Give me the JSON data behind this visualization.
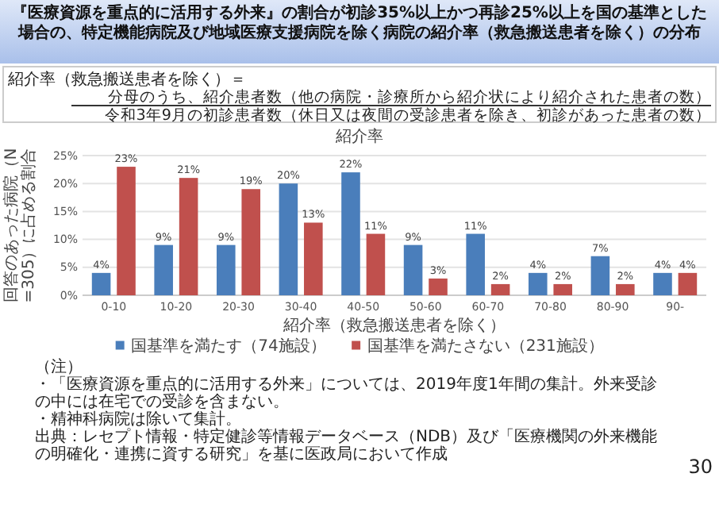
{
  "chart_data": {
    "type": "bar",
    "title": "『医療資源を重点的に活用する外来』の割合が初診35%以上かつ再診25%以上を国の基準とした場合の、特定機能病院及び地域医療支援病院を除く病院の紹介率（救急搬送患者を除く）の分布",
    "subtitle": "紹介率",
    "xlabel": "紹介率（救急搬送患者を除く）",
    "ylabel": "回答のあった病院（N=305）に占める割合",
    "categories": [
      "0-10",
      "10-20",
      "20-30",
      "30-40",
      "40-50",
      "50-60",
      "60-70",
      "70-80",
      "80-90",
      "90-"
    ],
    "series": [
      {
        "name": "国基準を満たす（74施設）",
        "color": "#4a7ebb",
        "values": [
          4,
          9,
          9,
          20,
          22,
          9,
          11,
          4,
          7,
          4
        ],
        "value_labels": [
          "4%",
          "9%",
          "9%",
          "20%",
          "22%",
          "9%",
          "11%",
          "4%",
          "7%",
          "4%"
        ]
      },
      {
        "name": "国基準を満たさない（231施設）",
        "color": "#c0504d",
        "values": [
          23,
          21,
          19,
          13,
          11,
          3,
          2,
          2,
          2,
          4
        ],
        "value_labels": [
          "23%",
          "21%",
          "19%",
          "13%",
          "11%",
          "3%",
          "2%",
          "2%",
          "2%",
          "4%"
        ]
      }
    ],
    "ylim": [
      0,
      25
    ],
    "yticks": [
      {
        "value": 0,
        "label": "0%"
      },
      {
        "value": 5,
        "label": "5%"
      },
      {
        "value": 10,
        "label": "10%"
      },
      {
        "value": 15,
        "label": "15%"
      },
      {
        "value": 20,
        "label": "20%"
      },
      {
        "value": 25,
        "label": "25%"
      }
    ],
    "grid": "y",
    "legend": "bottom",
    "annotations": [
      "紹介率（救急搬送患者を除く）＝",
      "分母のうち、紹介患者数（他の病院・診療所から紹介状により紹介された患者の数）",
      "令和3年9月の初診患者数（休日又は夜間の受診患者を除き、初診があった患者の数）",
      "（注）",
      "・「医療資源を重点的に活用する外来」については、2019年度1年間の集計。外来受診の中には在宅での受診を含まない。",
      "・精神科病院は除いて集計。",
      "出典：レセプト情報・特定健診等情報データベース（NDB）及び「医療機関の外来機能の明確化・連携に資する研究」を基に医政局において作成",
      "30"
    ]
  }
}
